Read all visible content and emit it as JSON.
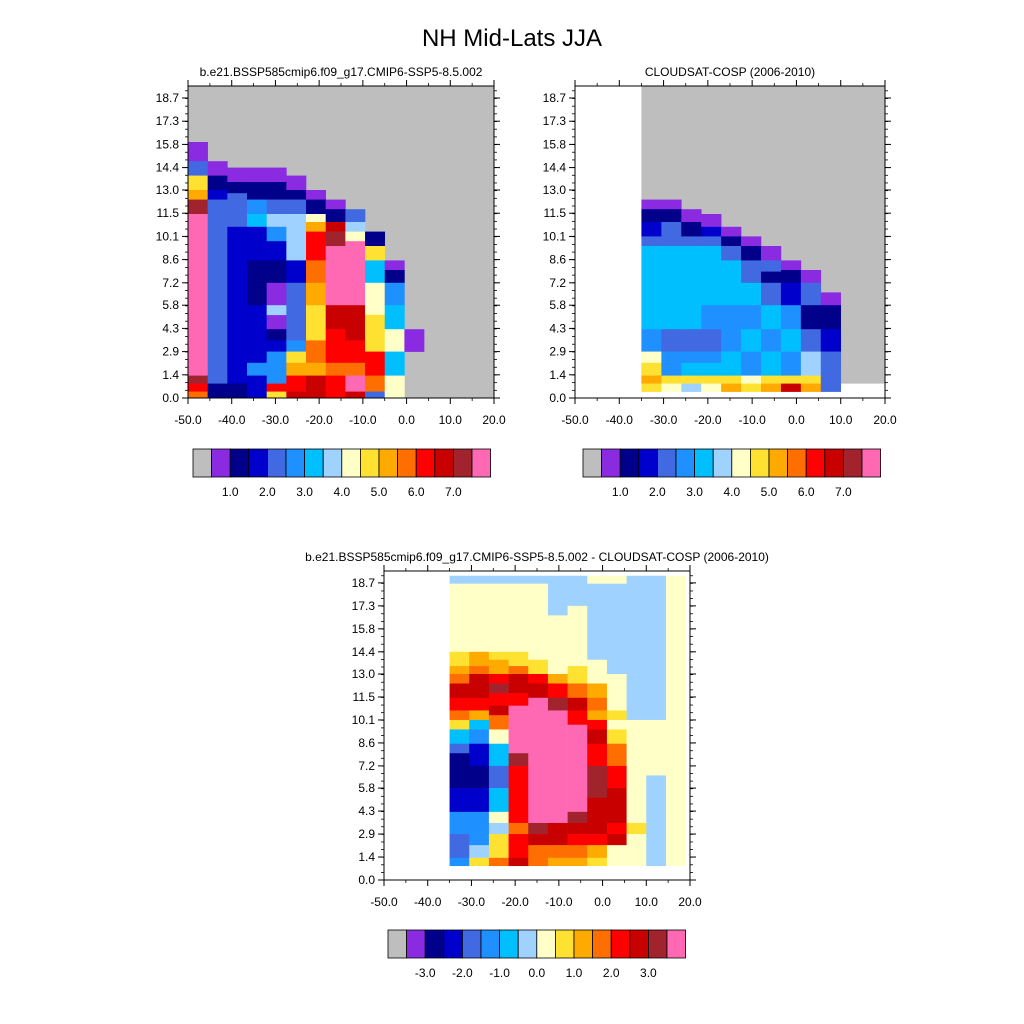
{
  "figure_title": "NH Mid-Lats JJA",
  "colors": {
    "missing": "#bebebe",
    "palette": [
      "#bebebe",
      "#8a2be2",
      "#00008b",
      "#0000cd",
      "#4169e1",
      "#1e90ff",
      "#00bfff",
      "#a0d2ff",
      "#ffffc8",
      "#ffe132",
      "#ffaa00",
      "#ff6e00",
      "#ff0000",
      "#c80000",
      "#a0232d",
      "#ff69b4"
    ]
  },
  "chart_data": [
    {
      "type": "heatmap",
      "title": "b.e21.BSSP585cmip6.f09_g17.CMIP6-SSP5-8.5.002",
      "x_tick_labels": [
        "-50.0",
        "-40.0",
        "-30.0",
        "-20.0",
        "-10.0",
        "0.0",
        "10.0",
        "20.0"
      ],
      "y_tick_labels": [
        "0.0",
        "1.4",
        "2.9",
        "4.3",
        "5.8",
        "7.2",
        "8.6",
        "10.1",
        "11.5",
        "13.0",
        "14.4",
        "15.8",
        "17.3",
        "18.7"
      ],
      "colorbar_labels": [
        "1.0",
        "2.0",
        "3.0",
        "4.0",
        "5.0",
        "6.0",
        "7.0"
      ],
      "xlim": [
        -50,
        20
      ],
      "ylim": [
        0,
        19.5
      ],
      "grid": false,
      "rows_top_down": [
        "........................................................................................",
        "FFFFAAAAAAAAAAAAAAAAAAAAAAAAAAAAAAAAAAAAAAAAAAAAAAAAAAAAAAAAAAAAAAAAAAAAAAAAAAAAAAAAAAAA",
        "FFFFAAAAAAAAAAAAAAAAAAAAAAAAAAAAAAAAAAAAAAAAAAAAAAAAAAAAAAAAAAAAAAAAAAAAAAAAAAAAAAAAAAAA",
        "000000000000000000000000000000000000000000000000000000000000000000000000000000000000000000",
        "0000000000000000000000000000000000000000000000000000000000000000000000000000000000000000"
      ],
      "cells": "A:0/14.8-16.0:1|A:0/13.9-14.8:4|A:0/13.0-13.9:9|A:0/12.4-13.0:10|A:0/11.5-12.4:14|A:0/0-11.5:15|A:0/0.9-1.4:14|A:0/0.4-0.9:12|A:0/0-0.4:11|A:1/13.9-14.8:1|A:1/13.0-13.9:2|A:1/12.4-13.0:3|A:1/0-12.4:4|A:1/0-0.9:2|A:2/13.5-14.4:1|A:2/12.8-13.5:2|A:2/12.0-12.8:4|A:2/10.7-12.0:4|A:2/0-10.7:3|A:2/0-0.9:2|A:3/13.5-14.4:1|A:3/12.4-13.5:2|A:3/11.5-12.4:5|A:3/10.7-11.5:6|A:3/8.6-10.7:3|A:3/5.8-8.6:2|A:3/0-5.8:3|A:3/1.4-2.2:5|A:3/0-1.4:3|A:4/13.5-14.4:1|A:4/12.4-13.5:2|A:4/11.5-12.4:4|A:4/10.7-11.5:7|A:4/9.8-10.7:5|A:4/8.6-9.8:3|A:4/7.2-8.6:2|A:4/4.3-7.2:1|A:4/5.2-5.8:7|A:4/3.6-4.3:2|A:4/2.9-3.6:3|A:4/0.9-2.9:5|A:4/0.4-0.9:12|A:4/0-0.4:9|A:5/13.0-13.9:1|A:5/12.4-13.0:2|A:5/11.5-12.4:4|A:5/10.7-11.5:7|A:5/8.6-10.7:7|A:5/7.2-8.6:3|A:5/3.6-7.2:4|A:5/2.9-3.6:5|A:5/2.2-2.9:9|A:5/1.4-2.2:10|A:5/0.4-1.4:12|A:5/0-0.4:13|A:6/12.4-13.0:1|A:6/11.5-12.4:2|A:6/11.0-11.5:8|A:6/10.4-11.0:10|A:6/8.6-10.4:12|A:6/7.2-8.6:11|A:6/5.8-7.2:10|A:6/3.6-5.8:9|A:6/2.2-3.6:11|A:6/1.4-2.2:10|A:6/0-1.4:13|A:7/11.8-12.4:1|A:7/11.0-11.8:2|A:7/10.4-11.0:13|A:7/9.5-10.4:14|A:7/5.8-9.5:15|A:7/4.3-5.8:13|A:7/2.2-4.3:12|A:7/1.4-2.2:11|A:7/0-1.4:12|A:8/11.0-11.8:4|A:8/10.4-11.0:7|A:8/9.8-10.4:8|A:8/8.6-9.8:15|A:8/5.8-8.6:15|A:8/3.6-5.8:13|A:8/2.2-3.6:12|A:8/1.4-2.2:11|A:8/0.4-1.4:15|A:8/0-0.4:13|A:9/9.5-10.4:2|A:9/8.6-9.5:9|A:9/7.2-8.6:6|A:9/5.2-7.2:8|A:9/4.3-5.2:9|A:9/2.9-4.3:9|A:9/1.4-2.9:12|A:9/0.4-1.4:11|A:9/0-0.4:4|A:10/8.0-8.6:1|A:10/7.2-8.0:2|A:10/5.8-7.2:5|A:10/4.3-5.8:6|A:10/2.9-4.3:8|A:10/1.4-2.9:6|A:10/0-1.4:8|A:11/2.9-4.3:1"
    },
    {
      "type": "heatmap",
      "title": "CLOUDSAT-COSP (2006-2010)",
      "x_tick_labels": [
        "-50.0",
        "-40.0",
        "-30.0",
        "-20.0",
        "-10.0",
        "0.0",
        "10.0",
        "20.0"
      ],
      "y_tick_labels": [
        "0.0",
        "1.4",
        "2.9",
        "4.3",
        "5.8",
        "7.2",
        "8.6",
        "10.1",
        "11.5",
        "13.0",
        "14.4",
        "15.8",
        "17.3",
        "18.7"
      ],
      "colorbar_labels": [
        "1.0",
        "2.0",
        "3.0",
        "4.0",
        "5.0",
        "6.0",
        "7.0"
      ],
      "xlim": [
        -50,
        20
      ],
      "ylim": [
        0,
        19.5
      ],
      "grid": false,
      "cells": "B:0/11.8-12.4:1|B:0/11.0-11.8:2|B:0/10.1-11.0:3|B:0/9.5-10.1:4|B:0/4.3-9.5:6|B:0/2.9-4.3:5|B:0/2.2-2.9:8|B:0/1.4-2.2:9|B:0/0.9-1.4:10|B:0/0.4-0.9:9|B:1/11.8-12.4:1|B:1/11.0-11.8:2|B:1/10.1-11.0:4|B:1/9.5-10.1:4|B:1/4.3-9.5:6|B:1/2.9-4.3:4|B:1/2.2-2.9:5|B:1/1.4-2.2:5|B:1/0.9-1.4:9|B:1/0.4-0.9:8|B:2/11.0-11.8:1|B:2/10.1-11.0:2|B:2/9.5-10.1:4|B:2/4.3-9.5:6|B:2/2.9-4.3:4|B:2/2.2-2.9:5|B:2/1.4-2.2:6|B:2/0.9-1.4:9|B:2/0.4-0.9:7|B:3/10.7-11.5:1|B:3/10.1-10.7:3|B:3/9.5-10.1:4|B:3/5.8-9.5:6|B:3/4.3-5.8:5|B:3/2.9-4.3:4|B:3/2.2-2.9:5|B:3/1.4-2.2:6|B:3/0.9-1.4:9|B:3/0.4-0.9:8|B:4/10.1-10.7:1|B:4/9.5-10.1:2|B:4/8.6-9.5:4|B:4/5.8-8.6:6|B:4/2.9-5.8:5|B:4/1.4-2.9:6|B:4/0.9-1.4:9|B:4/0.4-0.9:10|B:5/9.5-10.1:1|B:5/8.6-9.5:2|B:5/7.2-8.6:4|B:5/5.8-7.2:6|B:5/4.3-5.8:5|B:5/2.9-4.3:6|B:5/1.4-2.9:5|B:5/0.9-1.4:8|B:5/0.4-0.9:9|B:6/8.6-9.5:1|B:6/7.9-8.6:4|B:6/7.2-7.9:2|B:6/5.8-7.2:4|B:6/4.3-5.8:6|B:6/2.9-4.3:5|B:6/1.4-2.9:6|B:6/0.9-1.4:9|B:6/0.4-0.9:10|B:7/8.0-8.6:1|B:7/7.2-8.0:2|B:7/5.8-7.2:3|B:7/4.3-5.8:5|B:7/2.9-4.3:6|B:7/1.4-2.9:5|B:7/0.9-1.4:9|B:7/0.4-0.9:13|B:8/7.2-8.0:1|B:8/5.8-7.2:4|B:8/4.3-5.8:2|B:8/2.9-4.3:4|B:8/1.4-2.9:7|B:8/0.9-1.4:9|B:8/0.4-0.9:10|B:9/5.8-6.6:1|B:9/4.3-5.8:2|B:9/2.9-4.3:3|B:9/1.4-2.9:4|B:9/0.4-1.4:4"
    },
    {
      "type": "heatmap",
      "title": "b.e21.BSSP585cmip6.f09_g17.CMIP6-SSP5-8.5.002 - CLOUDSAT-COSP (2006-2010)",
      "x_tick_labels": [
        "-50.0",
        "-40.0",
        "-30.0",
        "-20.0",
        "-10.0",
        "0.0",
        "10.0",
        "20.0"
      ],
      "y_tick_labels": [
        "0.0",
        "1.4",
        "2.9",
        "4.3",
        "5.8",
        "7.2",
        "8.6",
        "10.1",
        "11.5",
        "13.0",
        "14.4",
        "15.8",
        "17.3",
        "18.7"
      ],
      "colorbar_labels": [
        "-3.0",
        "-2.0",
        "-1.0",
        "0.0",
        "1.0",
        "2.0",
        "3.0"
      ],
      "xlim": [
        -50,
        20
      ],
      "ylim": [
        0,
        19.5
      ],
      "grid": false,
      "cells": "C:0/18.7-19.2:7|C:0/14.4-18.7:8|C:0/13.5-14.4:9|C:0/13.0-13.5:10|C:0/12.4-13.0:11|C:0/11.5-12.4:13|C:0/10.7-11.5:12|C:0/10.1-10.7:11|C:0/9.5-10.1:9|C:0/8.6-9.5:6|C:0/8.0-8.6:4|C:0/5.8-8.0:2|C:0/4.3-5.8:3|C:0/2.9-4.3:5|C:0/1.4-2.9:4|C:0/0.9-1.4:5|C:1/18.7-19.2:7|C:1/14.4-18.7:8|C:1/13.5-14.4:10|C:1/13.0-13.5:11|C:1/11.5-13.0:13|C:1/10.7-11.5:12|C:1/10.1-10.7:10|C:1/9.5-10.1:6|C:1/8.6-9.5:5|C:1/7.2-8.6:3|C:1/5.8-7.2:2|C:1/4.3-5.8:3|C:1/2.9-4.3:5|C:1/2.2-2.9:5|C:1/1.4-2.2:7|C:1/0.9-1.4:9|C:2/18.7-19.2:7|C:2/14.4-18.7:8|C:2/13.9-14.4:9|C:2/13.0-13.9:10|C:2/12.4-13.0:12|C:2/11.8-12.4:14|C:2/11.0-11.8:12|C:2/10.4-11.0:13|C:2/9.5-10.4:11|C:2/8.6-9.5:8|C:2/7.2-8.6:6|C:2/5.8-7.2:4|C:2/4.3-5.8:6|C:2/3.6-4.3:8|C:2/2.9-3.6:7|C:2/1.4-2.9:9|C:2/0.9-1.4:11|C:3/18.7-19.2:7|C:3/15.3-18.7:8|C:3/14.4-15.3:8|C:3/13.5-14.4:9|C:3/13.0-13.5:11|C:3/11.8-13.0:13|C:3/11.0-11.8:12|C:3/10.1-11.0:15|C:3/8.0-10.1:15|C:3/7.2-8.0:14|C:3/4.3-7.2:12|C:3/3.6-4.3:12|C:3/2.9-3.6:11|C:3/1.4-2.9:12|C:3/0.9-1.4:13|C:4/18.7-19.2:7|C:4/15.8-18.7:8|C:4/13.9-15.8:8|C:4/13.0-13.9:9|C:4/12.4-13.0:12|C:4/11.5-12.4:13|C:4/10.1-11.5:15|C:4/3.6-10.1:15|C:4/2.9-3.6:14|C:4/2.2-2.9:13|C:4/0.9-2.2:11|C:5/18.7-19.2:7|C:5/16.7-18.7:7|C:5/14.4-16.7:8|C:5/13.0-14.4:8|C:5/12.4-13.0:10|C:5/11.5-12.4:12|C:5/10.7-11.5:14|C:5/4.3-10.7:15|C:5/3.6-4.3:15|C:5/2.9-3.6:13|C:5/2.2-2.9:13|C:5/1.4-2.2:11|C:5/0.9-1.4:10|C:6/18.7-19.2:7|C:6/17.3-18.7:7|C:6/15.3-17.3:8|C:6/13.5-15.3:8|C:6/12.4-13.5:9|C:6/11.5-12.4:11|C:6/10.7-11.5:13|C:6/9.8-10.7:12|C:6/4.3-9.8:15|C:6/3.6-4.3:14|C:6/2.9-3.6:13|C:6/2.2-2.9:12|C:6/1.4-2.2:11|C:6/0.9-1.4:10|C:7/18.7-19.2:8|C:7/17.9-18.7:7|C:7/16.2-17.9:7|C:7/13.9-16.2:7|C:7/12.4-13.9:8|C:7/11.5-12.4:10|C:7/10.7-11.5:11|C:7/10.1-10.7:10|C:7/9.5-10.1:12|C:7/8.6-9.5:13|C:7/7.2-8.6:12|C:7/5.2-7.2:14|C:7/2.9-5.2:13|C:7/2.2-2.9:12|C:7/1.4-2.2:10|C:7/0.9-1.4:9|C:8/18.7-19.2:8|C:8/17.9-18.7:7|C:8/13.0-17.9:7|C:8/11.5-13.0:8|C:8/10.7-11.5:8|C:8/10.1-10.7:9|C:8/9.5-10.1:8|C:8/8.6-9.5:9|C:8/7.2-8.6:11|C:8/5.8-7.2:12|C:8/3.6-5.8:13|C:8/2.9-3.6:12|C:8/2.2-2.9:13|C:8/1.4-2.2:8|C:8/0.9-1.4:8|C:9/18.7-19.2:7|C:9/13.0-18.7:7|C:9/10.1-13.0:7|C:9/9.5-10.1:8|C:9/8.6-9.5:8|C:9/3.6-8.6:8|C:9/2.9-3.6:9|C:9/0.9-2.9:8|C:10/10.1-19.2:7|C:10/6.6-10.1:8|C:10/0.9-6.6:7|C:11/0.9-19.2:8"
    }
  ]
}
